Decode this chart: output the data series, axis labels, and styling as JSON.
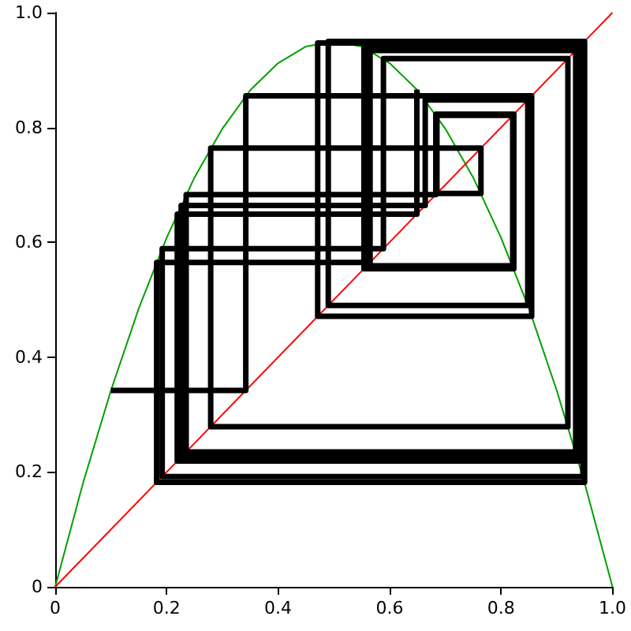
{
  "chart_data": {
    "type": "line",
    "marker": "none",
    "grid": false,
    "xlim": [
      0,
      1
    ],
    "xticks": [
      0,
      0.2,
      0.4,
      0.6,
      0.8,
      {
        "value": 1,
        "label": "1.0"
      }
    ],
    "ylim": [
      0,
      1
    ],
    "yticks": [
      0,
      0.2,
      0.4,
      0.6,
      0.8,
      {
        "value": 1,
        "label": "1.0"
      }
    ],
    "series": [
      {
        "color": "#00a000",
        "x": [
          0,
          0.05,
          0.1,
          0.15,
          0.2,
          0.25,
          0.3,
          0.35,
          0.4,
          0.45,
          0.5,
          0.55,
          0.6,
          0.65,
          0.7,
          0.75,
          0.8,
          0.85,
          0.9,
          0.95,
          1
        ],
        "values": [
          0,
          0.181,
          0.342,
          0.485,
          0.608,
          0.713,
          0.798,
          0.865,
          0.912,
          0.941,
          0.95,
          0.941,
          0.912,
          0.865,
          0.798,
          0.713,
          0.608,
          0.485,
          0.342,
          0.181,
          0
        ]
      },
      {
        "color": "#ff0000",
        "x": [
          0,
          1
        ],
        "values": [
          0,
          1
        ]
      },
      {
        "color": "#000000",
        "x": [
          0.1,
          0.342,
          0.342,
          0.855,
          0.855,
          0.471,
          0.471,
          0.947,
          0.947,
          0.192,
          0.192,
          0.589,
          0.589,
          0.92,
          0.92,
          0.279,
          0.279,
          0.764,
          0.764,
          0.685,
          0.685,
          0.821,
          0.821,
          0.559,
          0.559,
          0.937,
          0.937,
          0.226,
          0.226,
          0.664,
          0.664,
          0.848,
          0.848,
          0.49,
          0.49,
          0.95,
          0.95,
          0.182,
          0.182,
          0.565,
          0.565,
          0.934,
          0.934,
          0.235,
          0.235,
          0.683,
          0.683,
          0.823,
          0.823,
          0.554,
          0.554,
          0.939,
          0.939,
          0.219,
          0.219,
          0.649,
          0.649
        ],
        "values": [
          0.342,
          0.342,
          0.855,
          0.855,
          0.471,
          0.471,
          0.947,
          0.947,
          0.192,
          0.192,
          0.589,
          0.589,
          0.92,
          0.92,
          0.279,
          0.279,
          0.764,
          0.764,
          0.685,
          0.685,
          0.821,
          0.821,
          0.559,
          0.559,
          0.937,
          0.937,
          0.226,
          0.226,
          0.664,
          0.664,
          0.848,
          0.848,
          0.49,
          0.49,
          0.95,
          0.95,
          0.182,
          0.182,
          0.565,
          0.565,
          0.934,
          0.934,
          0.235,
          0.235,
          0.683,
          0.683,
          0.823,
          0.823,
          0.554,
          0.554,
          0.939,
          0.939,
          0.219,
          0.219,
          0.649,
          0.649,
          0.866
        ]
      }
    ]
  }
}
